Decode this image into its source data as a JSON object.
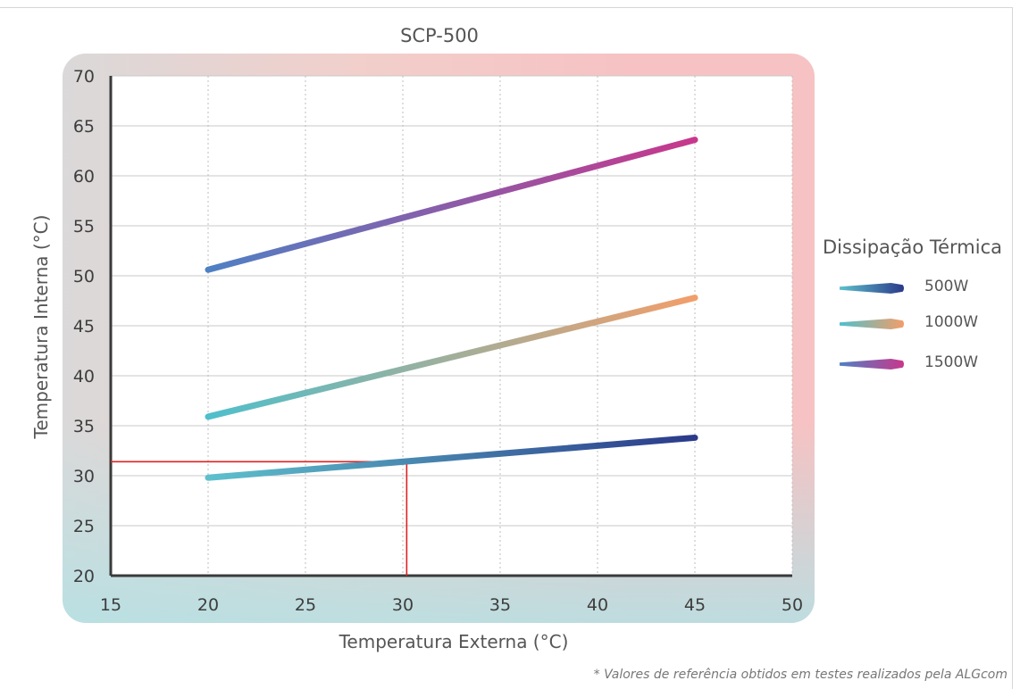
{
  "chart_data": {
    "type": "line",
    "title": "SCP-500",
    "xlabel": "Temperatura Externa (°C)",
    "ylabel": "Temperatura Interna (°C)",
    "xlim": [
      15,
      50
    ],
    "ylim": [
      20,
      70
    ],
    "xticks": [
      "15",
      "20",
      "25",
      "30",
      "35",
      "40",
      "45",
      "50"
    ],
    "yticks": [
      "20",
      "25",
      "30",
      "35",
      "40",
      "45",
      "50",
      "55",
      "60",
      "65",
      "70"
    ],
    "x": [
      20,
      45
    ],
    "grid": true,
    "legend_title": "Dissipação Térmica",
    "legend_placement": "right",
    "series": [
      {
        "name": "500W",
        "values": [
          29.8,
          33.8
        ],
        "color_start": "#5ec0cc",
        "color_end": "#2b3a8a"
      },
      {
        "name": "1000W",
        "values": [
          35.9,
          47.8
        ],
        "color_start": "#4fbfcb",
        "color_end": "#f29e6a"
      },
      {
        "name": "1500W",
        "values": [
          50.6,
          63.6
        ],
        "color_start": "#4f80c4",
        "color_end": "#c8378c"
      }
    ],
    "reference_point": {
      "x": 30.2,
      "y": 31.4,
      "color": "#e02020"
    },
    "footnote": "* Valores de referência obtidos em testes realizados pela ALGcom"
  }
}
